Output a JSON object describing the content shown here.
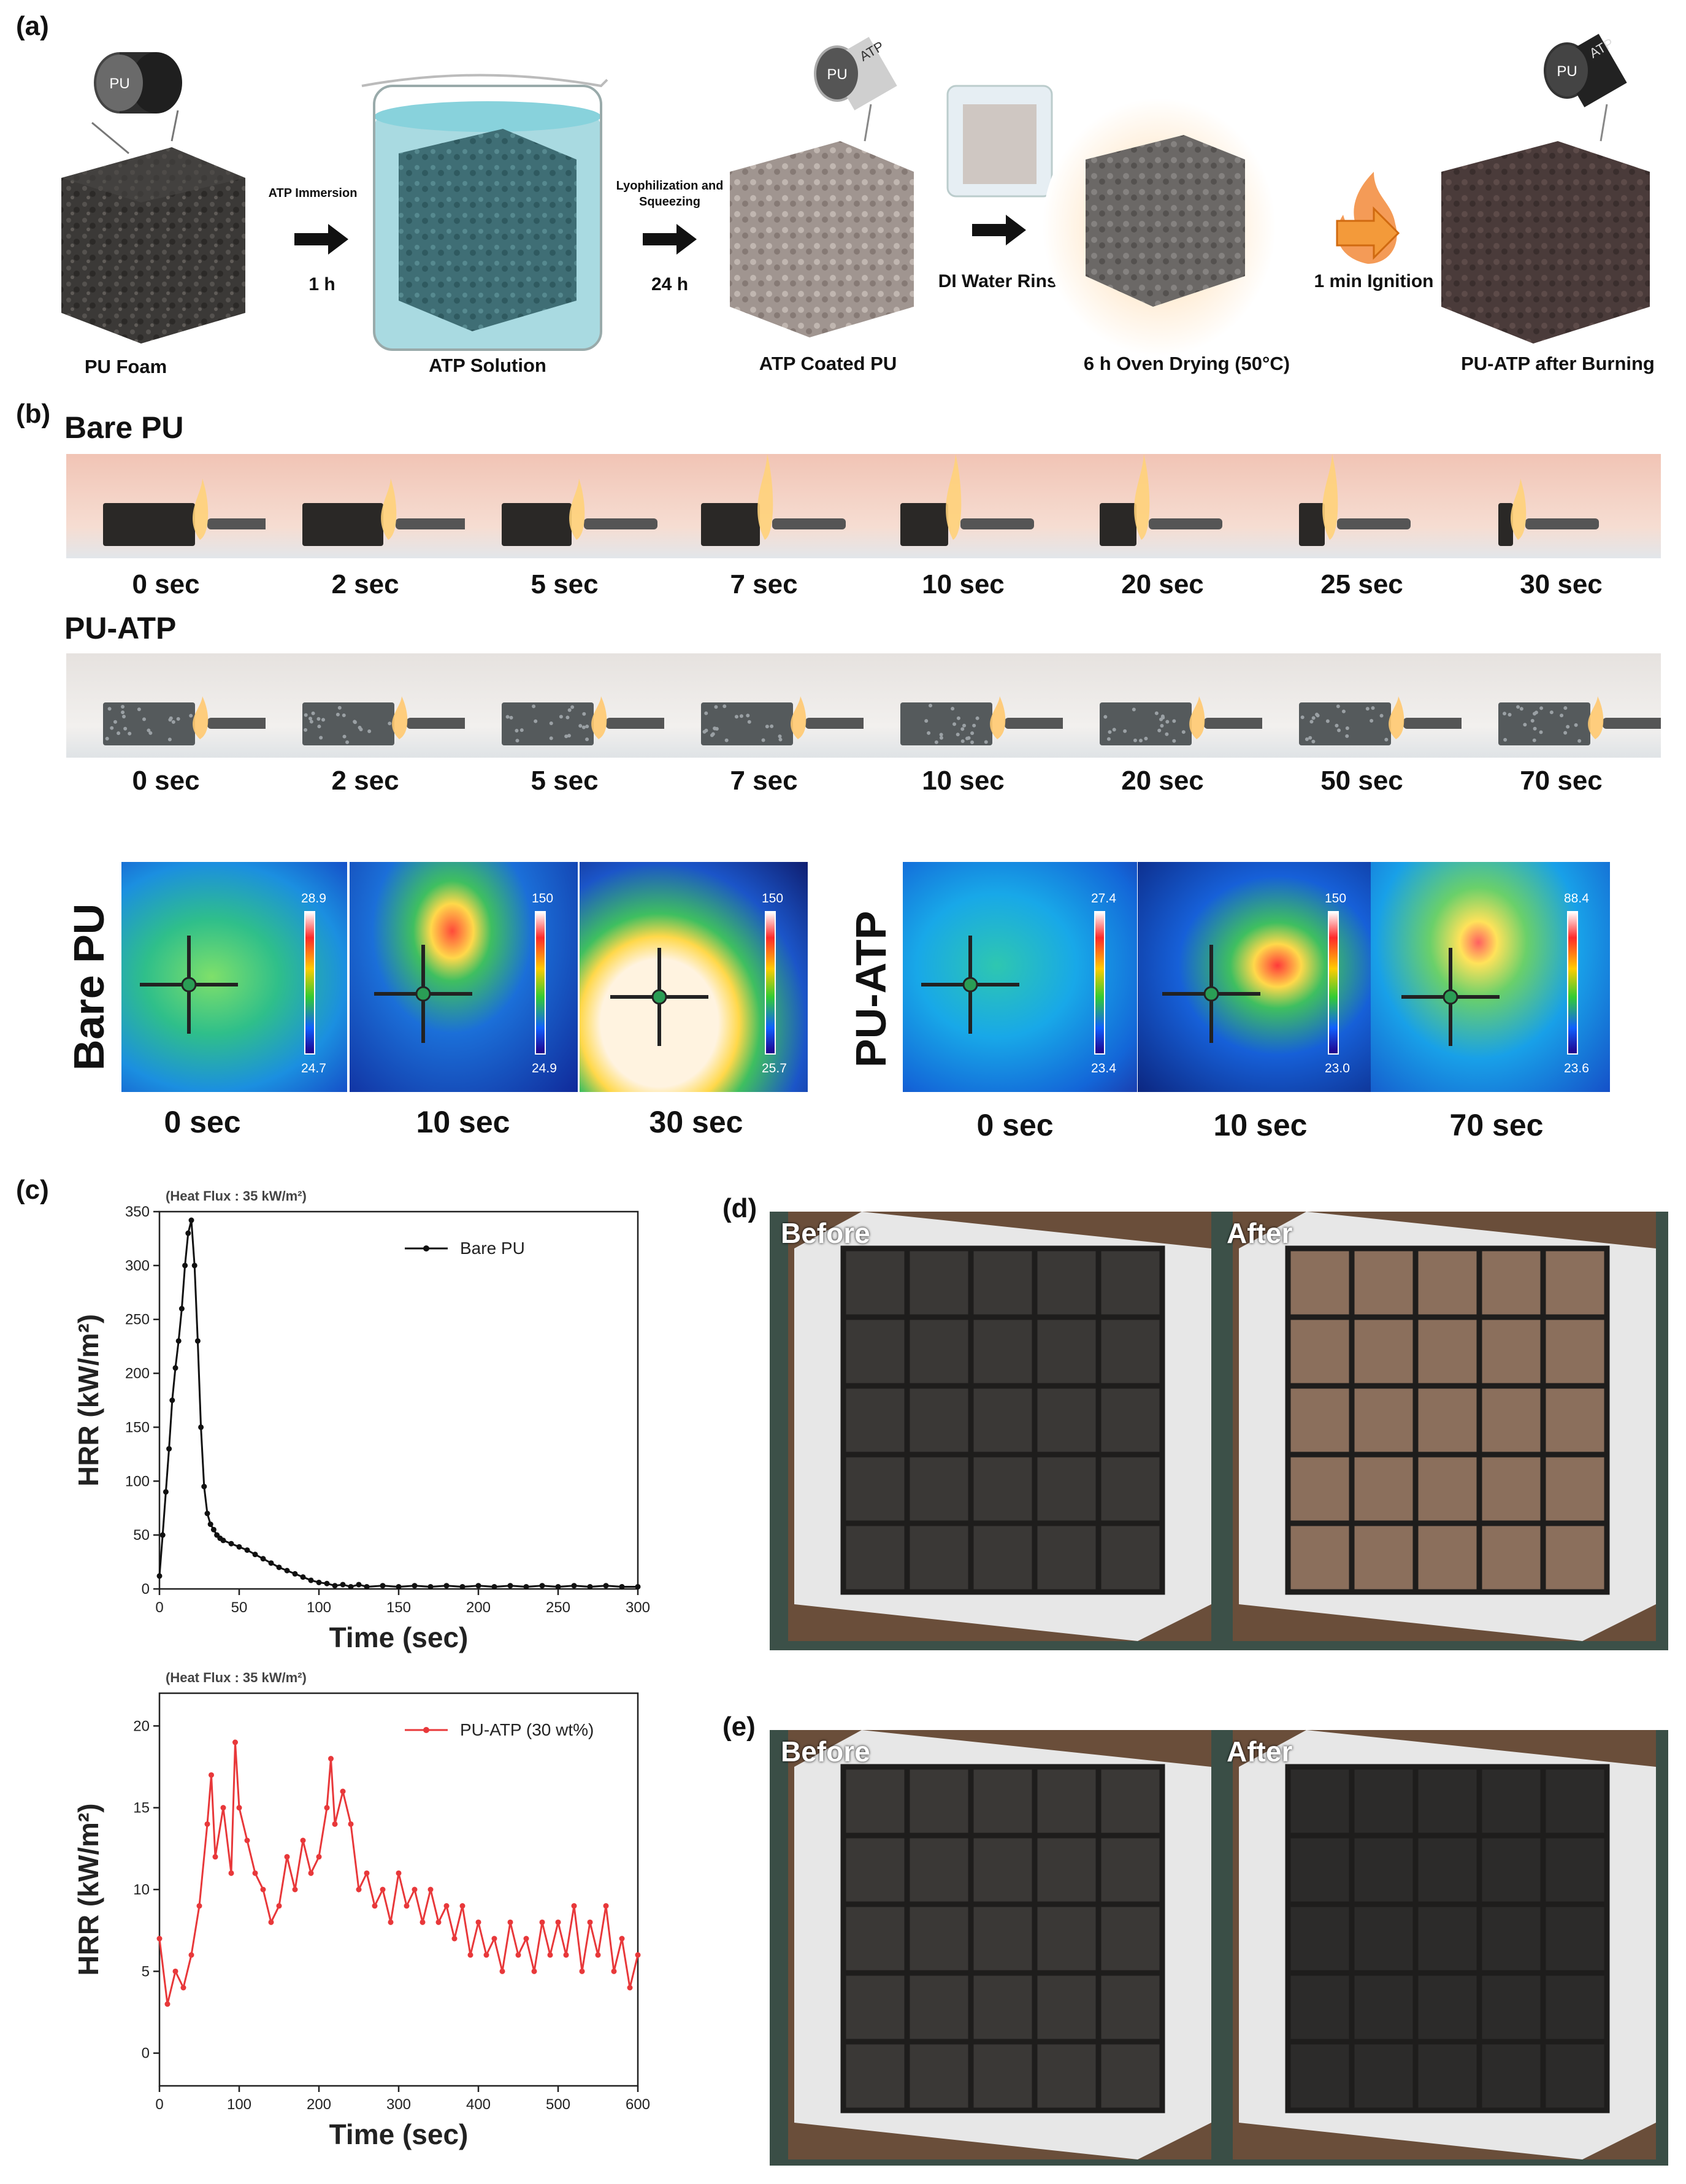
{
  "panel_a": {
    "label": "(a)",
    "tags": {
      "pu": "PU",
      "atp": "ATP"
    },
    "steps": [
      {
        "label": "PU Foam"
      },
      {
        "label": "ATP Solution"
      },
      {
        "label": "ATP Coated PU"
      },
      {
        "label": "6 h Oven Drying (50°C)"
      },
      {
        "label": "PU-ATP after Burning"
      }
    ],
    "arrows": [
      {
        "top": "ATP Immersion",
        "bottom": "1 h"
      },
      {
        "top": "Lyophilization and Squeezing",
        "bottom": "24 h"
      },
      {
        "top": "",
        "bottom": "DI Water Rinse"
      },
      {
        "top": "",
        "bottom": "1 min Ignition"
      }
    ]
  },
  "panel_b": {
    "label": "(b)",
    "bare": {
      "title": "Bare PU",
      "times": [
        "0 sec",
        "2 sec",
        "5 sec",
        "7 sec",
        "10 sec",
        "20 sec",
        "25 sec",
        "30 sec"
      ]
    },
    "atp": {
      "title": "PU-ATP",
      "times": [
        "0 sec",
        "2 sec",
        "5 sec",
        "7 sec",
        "10 sec",
        "20 sec",
        "50 sec",
        "70 sec"
      ]
    },
    "thermal_bare": {
      "title": "Bare PU",
      "times": [
        "0 sec",
        "10 sec",
        "30 sec"
      ],
      "scale_max": [
        "28.9",
        "150",
        "150"
      ],
      "scale_min": [
        "24.7",
        "24.9",
        "25.7"
      ]
    },
    "thermal_atp": {
      "title": "PU-ATP",
      "times": [
        "0 sec",
        "10 sec",
        "70 sec"
      ],
      "scale_max": [
        "27.4",
        "150",
        "88.4"
      ],
      "scale_min": [
        "23.4",
        "23.0",
        "23.6"
      ]
    }
  },
  "panel_c": {
    "label": "(c)"
  },
  "panel_d": {
    "label": "(d)",
    "before": "Before",
    "after": "After"
  },
  "panel_e": {
    "label": "(e)",
    "before": "Before",
    "after": "After"
  },
  "chart_data": [
    {
      "type": "line",
      "title": "(Heat Flux : 35 kW/m²)",
      "xlabel": "Time (sec)",
      "ylabel": "HRR (kW/m²)",
      "xlim": [
        0,
        300
      ],
      "ylim": [
        0,
        350
      ],
      "xticks": [
        0,
        50,
        100,
        150,
        200,
        250,
        300
      ],
      "yticks": [
        0,
        50,
        100,
        150,
        200,
        250,
        300,
        350
      ],
      "series": [
        {
          "name": "Bare PU",
          "color": "#111111",
          "x": [
            0,
            2,
            4,
            6,
            8,
            10,
            12,
            14,
            16,
            18,
            20,
            22,
            24,
            26,
            28,
            30,
            32,
            34,
            36,
            38,
            40,
            45,
            50,
            55,
            60,
            65,
            70,
            75,
            80,
            85,
            90,
            95,
            100,
            105,
            110,
            115,
            120,
            125,
            130,
            140,
            150,
            160,
            170,
            180,
            190,
            200,
            210,
            220,
            230,
            240,
            250,
            260,
            270,
            280,
            290,
            300
          ],
          "y": [
            12,
            50,
            90,
            130,
            175,
            205,
            230,
            260,
            300,
            330,
            342,
            300,
            230,
            150,
            95,
            70,
            60,
            55,
            50,
            47,
            45,
            42,
            39,
            36,
            32,
            28,
            24,
            20,
            17,
            14,
            11,
            8,
            6,
            5,
            3,
            4,
            2,
            4,
            2,
            3,
            2,
            3,
            2,
            3,
            2,
            3,
            2,
            3,
            2,
            3,
            2,
            3,
            2,
            3,
            2,
            2
          ]
        }
      ]
    },
    {
      "type": "line",
      "title": "(Heat Flux : 35 kW/m²)",
      "xlabel": "Time (sec)",
      "ylabel": "HRR (kW/m²)",
      "xlim": [
        0,
        600
      ],
      "ylim": [
        -2,
        22
      ],
      "xticks": [
        0,
        100,
        200,
        300,
        400,
        500,
        600
      ],
      "yticks": [
        0,
        5,
        10,
        15,
        20
      ],
      "series": [
        {
          "name": "PU-ATP (30 wt%)",
          "color": "#e8383a",
          "x": [
            0,
            10,
            20,
            30,
            40,
            50,
            60,
            65,
            70,
            80,
            90,
            95,
            100,
            110,
            120,
            130,
            140,
            150,
            160,
            170,
            180,
            190,
            200,
            210,
            215,
            220,
            230,
            240,
            250,
            260,
            270,
            280,
            290,
            300,
            310,
            320,
            330,
            340,
            350,
            360,
            370,
            380,
            390,
            400,
            410,
            420,
            430,
            440,
            450,
            460,
            470,
            480,
            490,
            500,
            510,
            520,
            530,
            540,
            550,
            560,
            570,
            580,
            590,
            600
          ],
          "y": [
            7,
            3,
            5,
            4,
            6,
            9,
            14,
            17,
            12,
            15,
            11,
            19,
            15,
            13,
            11,
            10,
            8,
            9,
            12,
            10,
            13,
            11,
            12,
            15,
            18,
            14,
            16,
            14,
            10,
            11,
            9,
            10,
            8,
            11,
            9,
            10,
            8,
            10,
            8,
            9,
            7,
            9,
            6,
            8,
            6,
            7,
            5,
            8,
            6,
            7,
            5,
            8,
            6,
            8,
            6,
            9,
            5,
            8,
            6,
            9,
            5,
            7,
            4,
            6
          ]
        }
      ]
    }
  ]
}
